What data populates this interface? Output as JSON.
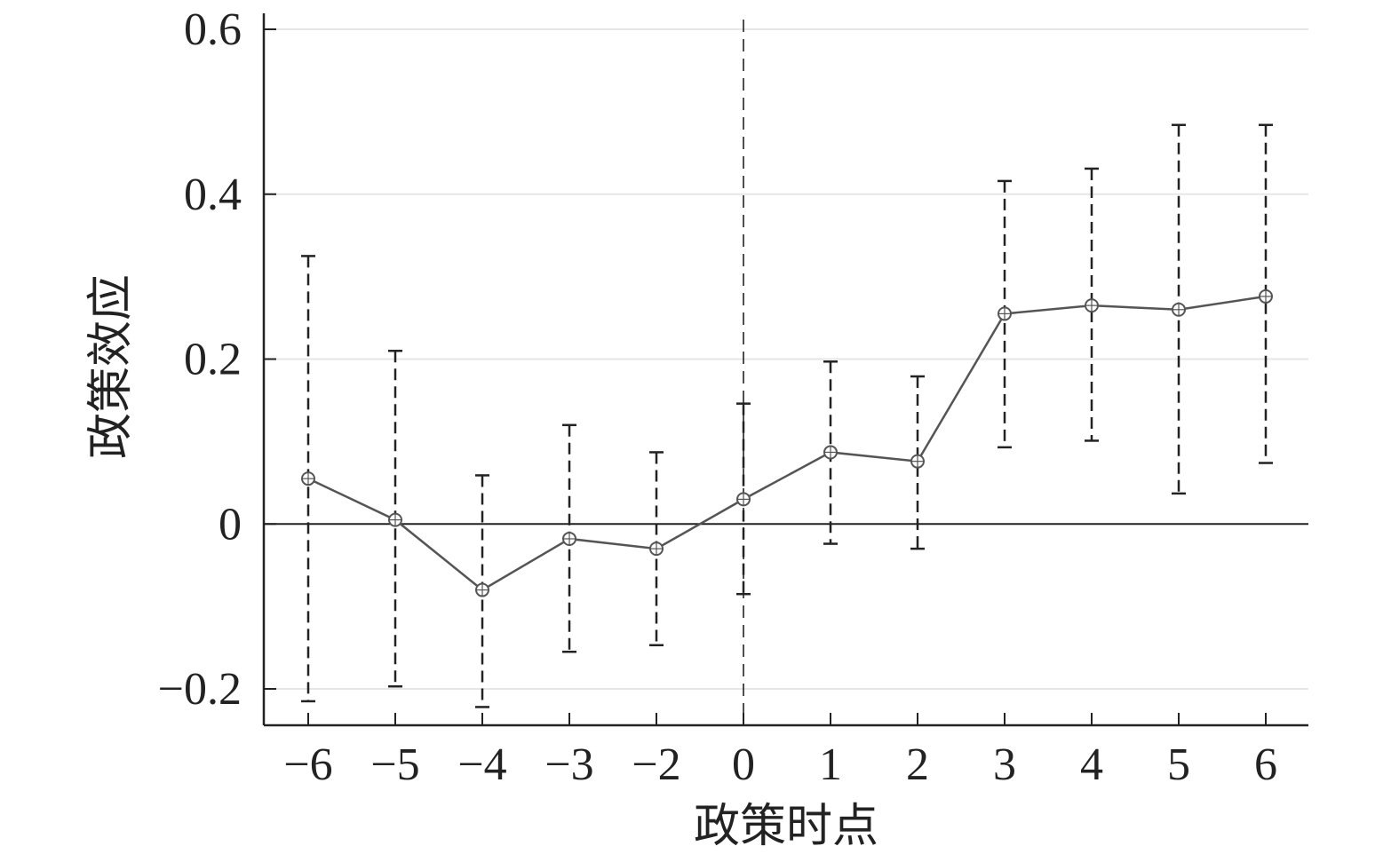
{
  "chart_data": {
    "type": "line",
    "title": "",
    "xlabel": "政策时点",
    "ylabel": "政策效应",
    "categories": [
      "−6",
      "−5",
      "−4",
      "−3",
      "−2",
      "0",
      "1",
      "2",
      "3",
      "4",
      "5",
      "6"
    ],
    "x": [
      -6,
      -5,
      -4,
      -3,
      -2,
      0,
      1,
      2,
      3,
      4,
      5,
      6
    ],
    "values": [
      0.055,
      0.005,
      -0.08,
      -0.018,
      -0.03,
      0.03,
      0.087,
      0.076,
      0.255,
      0.265,
      0.26,
      0.276
    ],
    "ci_lower": [
      -0.215,
      -0.197,
      -0.222,
      -0.155,
      -0.147,
      -0.085,
      -0.024,
      -0.03,
      0.093,
      0.101,
      0.037,
      0.074
    ],
    "ci_upper": [
      0.325,
      0.21,
      0.059,
      0.12,
      0.087,
      0.146,
      0.197,
      0.179,
      0.416,
      0.431,
      0.484,
      0.484
    ],
    "yticks": [
      -0.2,
      0,
      0.2,
      0.4,
      0.6
    ],
    "ytick_labels": [
      "−0.2",
      "0",
      "0.2",
      "0.4",
      "0.6"
    ],
    "ylim": [
      -0.245,
      0.62
    ],
    "grid": "horizontal",
    "reference_lines": {
      "horizontal_at": 0,
      "vertical_dashed_at": "0"
    },
    "colors": {
      "line": "#555555",
      "errorbar": "#222222",
      "axis": "#222222",
      "grid": "#e6e6e6"
    }
  }
}
